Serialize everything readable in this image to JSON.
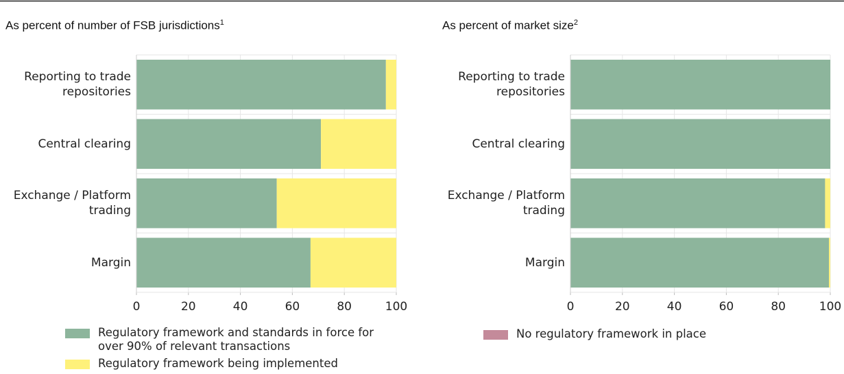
{
  "chart_data": [
    {
      "type": "stacked-barh",
      "title": "As percent of number of FSB jurisdictions",
      "title_note": "1",
      "categories": [
        "Reporting to trade repositories",
        "Central clearing",
        "Exchange / Platform trading",
        "Margin"
      ],
      "series": [
        {
          "name": "Regulatory framework and standards in force for over 90% of relevant transactions",
          "color": "#8db59c",
          "values": [
            96,
            71,
            54,
            67
          ]
        },
        {
          "name": "Regulatory framework being implemented",
          "color": "#fef17a",
          "values": [
            4,
            29,
            46,
            33
          ]
        }
      ],
      "xlim": [
        0,
        100
      ],
      "xticks": [
        0,
        20,
        40,
        60,
        80,
        100
      ],
      "grid": true
    },
    {
      "type": "stacked-barh",
      "title": "As percent of market size",
      "title_note": "2",
      "categories": [
        "Reporting to trade repositories",
        "Central clearing",
        "Exchange / Platform trading",
        "Margin"
      ],
      "series": [
        {
          "color": "#8db59c",
          "values": [
            100,
            100,
            98,
            99.5
          ]
        },
        {
          "color": "#fef17a",
          "values": [
            0,
            0,
            2,
            0.5
          ]
        },
        {
          "name": "No regulatory framework in place",
          "color": "#c48a9a",
          "values": [
            0,
            0,
            0,
            0
          ]
        }
      ],
      "xlim": [
        0,
        100
      ],
      "xticks": [
        0,
        20,
        40,
        60,
        80,
        100
      ],
      "grid": true
    }
  ]
}
